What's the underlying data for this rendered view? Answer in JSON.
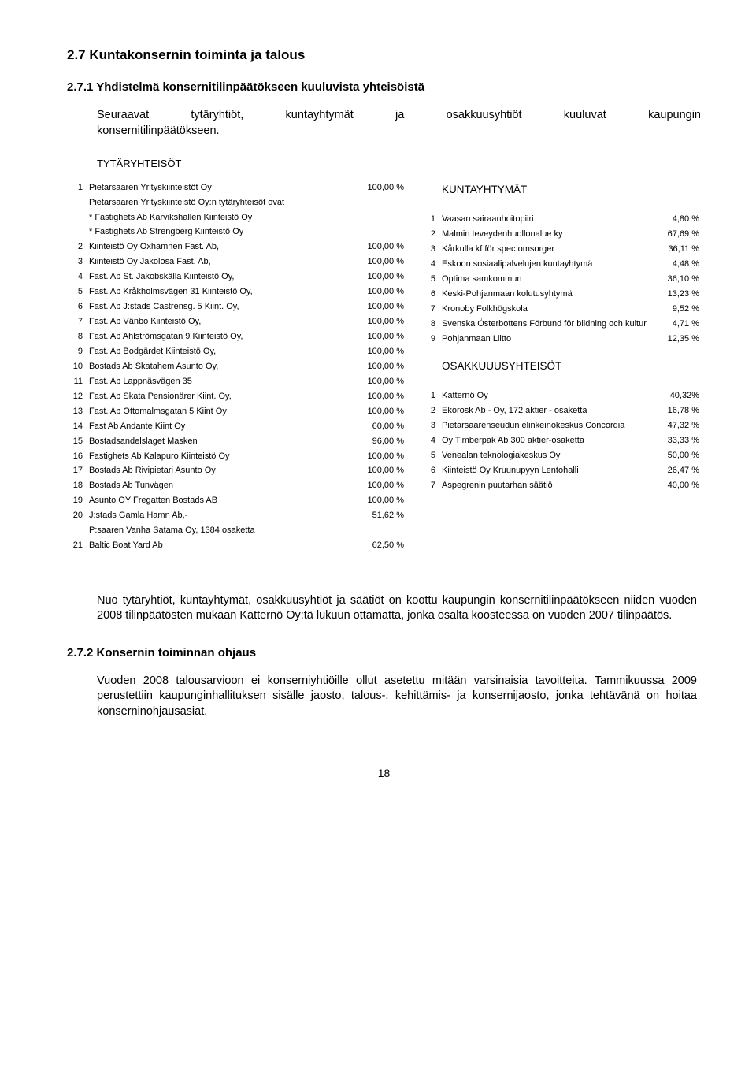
{
  "headings": {
    "h1": "2.7 Kuntakonsernin toiminta ja talous",
    "h2a": "2.7.1 Yhdistelmä konsernitilinpäätökseen kuuluvista yhteisöistä",
    "h2b": "2.7.2 Konsernin toiminnan ohjaus"
  },
  "para1a": "Seuraavat tytäryhtiöt, kuntayhtymät ja osakkuusyhtiöt kuuluvat kaupungin",
  "para1b": "konsernitilinpäätökseen.",
  "para2": "Nuo tytäryhtiöt, kuntayhtymät, osakkuusyhtiöt ja säätiöt on koottu kaupungin konsernitilinpäätökseen niiden vuoden 2008 tilinpäätösten mukaan Katternö Oy:tä lukuun ottamatta, jonka osalta koosteessa on vuoden 2007 tilinpäätös.",
  "para3": "Vuoden 2008 talousarvioon ei konserniyhtiöille ollut asetettu mitään varsinaisia tavoitteita. Tammikuussa 2009 perustettiin kaupunginhallituksen sisälle jaosto, talous-, kehittämis- ja konsernijaosto, jonka tehtävänä on hoitaa konserninohjausasiat.",
  "section_label": "TYTÄRYHTEISÖT",
  "left_header_name": "Pietarsaaren Yrityskiinteistöt Oy",
  "left_header_pct": "100,00 %",
  "left_sub": "Pietarsaaren Yrityskiinteistö Oy:n tytäryhteisöt ovat",
  "left_star1": "* Fastighets Ab Karvikshallen Kiinteistö Oy",
  "left_star2": "* Fastighets Ab Strengberg Kiinteistö Oy",
  "left_rows": [
    {
      "n": "2",
      "name": "Kiinteistö Oy Oxhamnen Fast. Ab,",
      "pct": "100,00 %"
    },
    {
      "n": "3",
      "name": "Kiinteistö Oy Jakolosa Fast. Ab,",
      "pct": "100,00 %"
    },
    {
      "n": "4",
      "name": "Fast. Ab St. Jakobskälla Kiinteistö Oy,",
      "pct": "100,00 %"
    },
    {
      "n": "5",
      "name": "Fast. Ab Kråkholmsvägen 31 Kiinteistö Oy,",
      "pct": "100,00 %"
    },
    {
      "n": "6",
      "name": "Fast. Ab J:stads Castrensg. 5 Kiint. Oy,",
      "pct": "100,00 %"
    },
    {
      "n": "7",
      "name": "Fast. Ab Vänbo Kiinteistö Oy,",
      "pct": "100,00 %"
    },
    {
      "n": "8",
      "name": "Fast. Ab Ahlströmsgatan 9 Kiinteistö Oy,",
      "pct": "100,00 %"
    },
    {
      "n": "9",
      "name": "Fast. Ab Bodgärdet Kiinteistö Oy,",
      "pct": "100,00 %"
    },
    {
      "n": "10",
      "name": "Bostads Ab Skatahem Asunto Oy,",
      "pct": "100,00 %"
    },
    {
      "n": "11",
      "name": "Fast. Ab Lappnäsvägen 35",
      "pct": "100,00 %"
    },
    {
      "n": "12",
      "name": "Fast. Ab Skata Pensionärer Kiint. Oy,",
      "pct": "100,00 %"
    },
    {
      "n": "13",
      "name": "Fast. Ab Ottomalmsgatan 5 Kiint Oy",
      "pct": "100,00 %"
    },
    {
      "n": "14",
      "name": "Fast Ab Andante Kiint Oy",
      "pct": "60,00 %"
    },
    {
      "n": "15",
      "name": "Bostadsandelslaget Masken",
      "pct": "96,00 %"
    },
    {
      "n": "16",
      "name": "Fastighets Ab Kalapuro Kiinteistö Oy",
      "pct": "100,00 %"
    },
    {
      "n": "17",
      "name": "Bostads Ab Rivipietari Asunto Oy",
      "pct": "100,00 %"
    },
    {
      "n": "18",
      "name": "Bostads Ab Tunvägen",
      "pct": "100,00 %"
    },
    {
      "n": "19",
      "name": "Asunto OY Fregatten Bostads AB",
      "pct": "100,00 %"
    },
    {
      "n": "20",
      "name": "J:stads Gamla Hamn Ab,-",
      "pct": "51,62 %"
    }
  ],
  "left_sub2": "P:saaren Vanha Satama Oy, 1384 osaketta",
  "left_last": {
    "n": "21",
    "name": "Baltic Boat Yard Ab",
    "pct": "62,50 %"
  },
  "right_head1": "KUNTAYHTYMÄT",
  "right_rows1": [
    {
      "n": "1",
      "name": "Vaasan sairaanhoitopiiri",
      "pct": "4,80 %"
    },
    {
      "n": "2",
      "name": "Malmin teveydenhuollonalue ky",
      "pct": "67,69 %"
    },
    {
      "n": "3",
      "name": "Kårkulla kf för spec.omsorger",
      "pct": "36,11 %"
    },
    {
      "n": "4",
      "name": "Eskoon sosiaalipalvelujen kuntayhtymä",
      "pct": "4,48 %"
    },
    {
      "n": "5",
      "name": "Optima samkommun",
      "pct": "36,10 %"
    },
    {
      "n": "6",
      "name": "Keski-Pohjanmaan kolutusyhtymä",
      "pct": "13,23 %"
    },
    {
      "n": "7",
      "name": "Kronoby Folkhögskola",
      "pct": "9,52 %"
    },
    {
      "n": "8",
      "name": "Svenska Österbottens Förbund för bildning och kultur",
      "pct": "4,71 %"
    },
    {
      "n": "9",
      "name": "Pohjanmaan Liitto",
      "pct": "12,35 %"
    }
  ],
  "right_head2": "OSAKKUUUSYHTEISÖT",
  "right_rows2": [
    {
      "n": "1",
      "name": "Katternö Oy",
      "pct": "40,32%"
    },
    {
      "n": "2",
      "name": "Ekorosk Ab - Oy, 172 aktier - osaketta",
      "pct": "16,78 %"
    },
    {
      "n": "3",
      "name": "Pietarsaarenseudun elinkeinokeskus Concordia",
      "pct": "47,32 %"
    },
    {
      "n": "4",
      "name": "Oy Timberpak Ab  300 aktier-osaketta",
      "pct": "33,33 %"
    },
    {
      "n": "5",
      "name": "Venealan teknologiakeskus Oy",
      "pct": "50,00 %"
    },
    {
      "n": "6",
      "name": "Kiinteistö Oy Kruunupyyn Lentohalli",
      "pct": "26,47 %"
    },
    {
      "n": "7",
      "name": "Aspegrenin puutarhan säätiö",
      "pct": "40,00 %"
    }
  ],
  "page_number": "18"
}
